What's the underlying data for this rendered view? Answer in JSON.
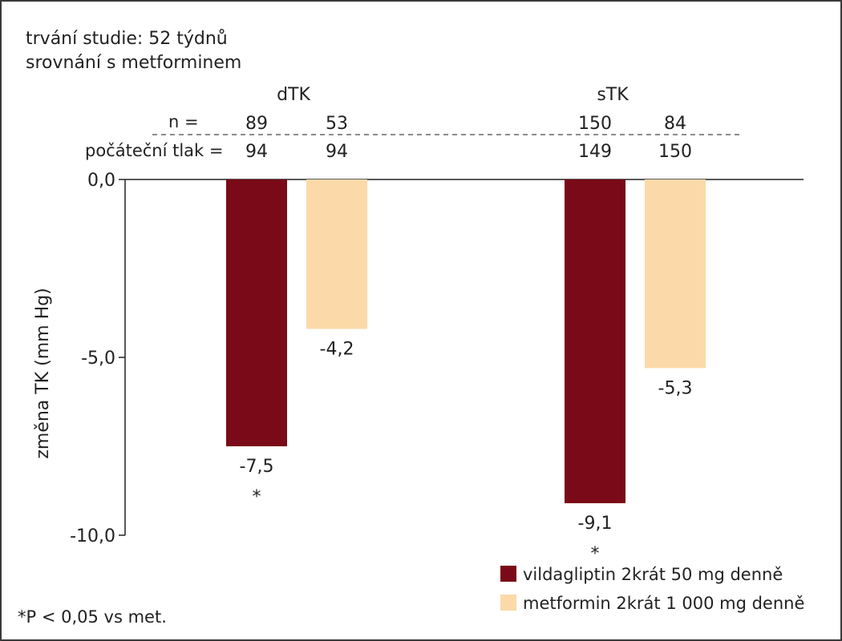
{
  "header": {
    "line1": "trvání studie: 52 týdnů",
    "line2": "srovnání s metforminem"
  },
  "table": {
    "n_label": "n =",
    "baseline_label": "počáteční tlak ="
  },
  "footnote": "*P  < 0,05 vs met.",
  "chart_data": {
    "type": "bar",
    "categories": [
      "dTK",
      "sTK"
    ],
    "ylabel": "změna TK (mm Hg)",
    "ylim": [
      -10,
      0
    ],
    "yticks": [
      0,
      -5,
      -10
    ],
    "ytick_labels": [
      "0,0",
      "-5,0",
      "-10,0"
    ],
    "legend_position": "bottom-right",
    "series": [
      {
        "name": "vildagliptin  2krát  50 mg denně",
        "color": "#7a0a17",
        "values": [
          -7.5,
          -9.1
        ],
        "value_labels": [
          "-7,5",
          "-9,1"
        ],
        "significance": [
          "*",
          "*"
        ],
        "n": [
          "89",
          "150"
        ],
        "baseline": [
          "94",
          "149"
        ]
      },
      {
        "name": "metformin 2krát 1 000 mg denně",
        "color": "#fcd9a8",
        "values": [
          -4.2,
          -5.3
        ],
        "value_labels": [
          "-4,2",
          "-5,3"
        ],
        "significance": [
          "",
          ""
        ],
        "n": [
          "53",
          "84"
        ],
        "baseline": [
          "94",
          "150"
        ]
      }
    ]
  }
}
